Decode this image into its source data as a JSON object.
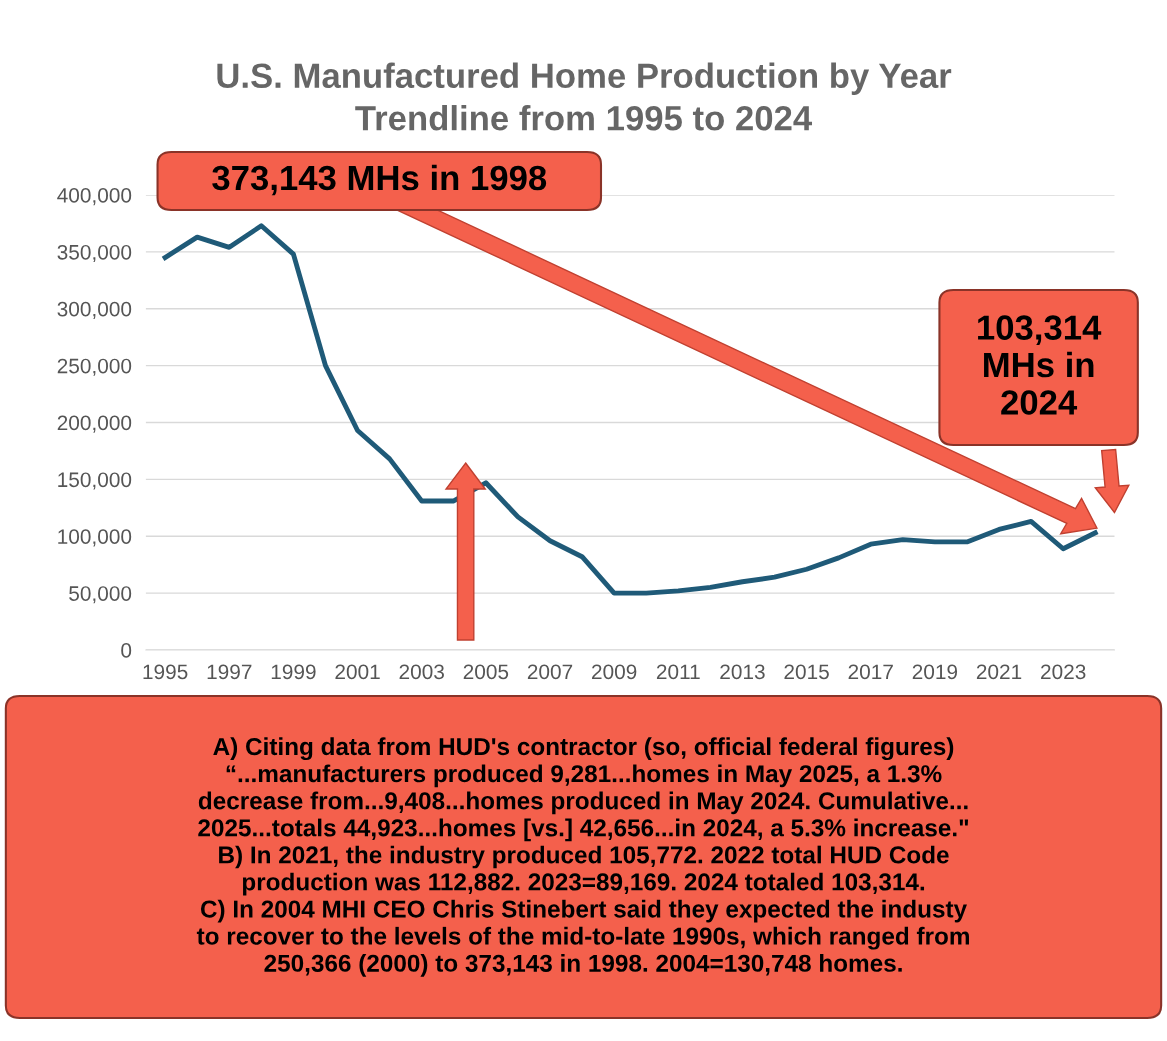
{
  "chart_data": {
    "type": "line",
    "title": "U.S. Manufactured Home Production by Year\nTrendline from 1995 to 2024",
    "categories": [
      "1995",
      null,
      "1997",
      null,
      "1999",
      null,
      "2001",
      null,
      "2003",
      null,
      "2005",
      null,
      "2007",
      null,
      "2009",
      null,
      "2011",
      null,
      "2013",
      null,
      "2015",
      null,
      "2017",
      null,
      "2019",
      null,
      "2021",
      null,
      "2023",
      null
    ],
    "series": [
      {
        "color": "#1f5a78",
        "values": [
          345000,
          363000,
          354000,
          373000,
          348000,
          250000,
          193000,
          168000,
          131000,
          131000,
          147000,
          117000,
          96000,
          82000,
          50000,
          50000,
          52000,
          55000,
          60000,
          64000,
          71000,
          81000,
          93000,
          97000,
          95000,
          95000,
          106000,
          113000,
          89000,
          103000
        ]
      }
    ],
    "ylim": [
      0,
      400000
    ],
    "yticks": [
      {
        "value": 0,
        "label": "0"
      },
      {
        "value": 50000,
        "label": "50,000"
      },
      {
        "value": 100000,
        "label": "100,000"
      },
      {
        "value": 150000,
        "label": "150,000"
      },
      {
        "value": 200000,
        "label": "200,000"
      },
      {
        "value": 250000,
        "label": "250,000"
      },
      {
        "value": 300000,
        "label": "300,000"
      },
      {
        "value": 350000,
        "label": "350,000"
      },
      {
        "value": 400000,
        "label": "400,000"
      }
    ],
    "grid": "y",
    "marker": "none",
    "line_style": "solid",
    "legend": false,
    "annotations": [
      "373,143 MHs in 1998",
      "103,314\nMHs in\n2024",
      "A) Citing data from HUD's contractor (so, official federal figures)\n“...manufacturers produced 9,281...homes in May 2025, a 1.3%\ndecrease from...9,408...homes produced in May 2024. Cumulative...\n2025...totals 44,923...homes [vs.] 42,656...in 2024, a 5.3% increase.\"\nB) In 2021, the industry produced 105,772. 2022 total HUD Code\nproduction was 112,882. 2023=89,169. 2024 totaled 103,314.\nC) In 2004 MHI CEO Chris Stinebert said they expected the industy\nto recover to the levels of the mid-to-late 1990s, which ranged from\n250,366 (2000) to 373,143 in 1998. 2004=130,748 homes."
    ]
  }
}
